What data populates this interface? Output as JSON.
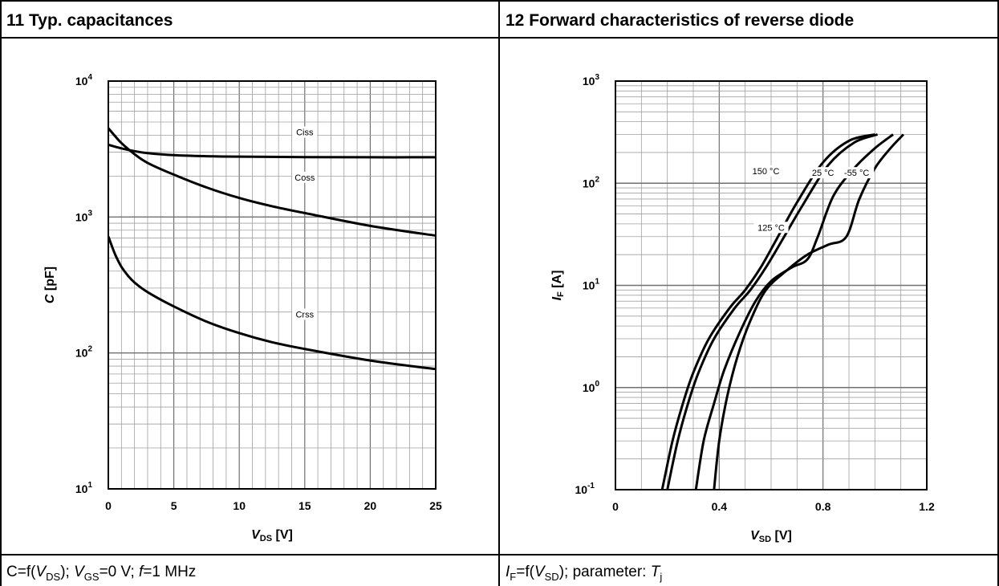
{
  "panels": [
    {
      "header": "11 Typ. capacitances",
      "caption": {
        "a": "C=f(",
        "b": "V",
        "c": "DS",
        "d": "); ",
        "e": "V",
        "f": "GS",
        "g": "=0 V; ",
        "h": "f",
        "i": "=1 MHz"
      }
    },
    {
      "header": "12 Forward characteristics of reverse diode",
      "caption": {
        "a": "I",
        "b": "F",
        "c": "=f(",
        "d": "V",
        "e": "SD",
        "f": "); parameter: ",
        "g": "T",
        "h": "j"
      }
    }
  ],
  "chart_data": [
    {
      "type": "line",
      "y_scale": "log",
      "xlim": [
        0,
        25
      ],
      "ylim": [
        10,
        10000
      ],
      "grid": true,
      "x_ticks": [
        "0",
        "5",
        "10",
        "15",
        "20",
        "25"
      ],
      "y_ticks": [
        {
          "base": "10",
          "exp": "1"
        },
        {
          "base": "10",
          "exp": "2"
        },
        {
          "base": "10",
          "exp": "3"
        },
        {
          "base": "10",
          "exp": "4"
        }
      ],
      "xlabel": {
        "main": "V",
        "sub": "DS",
        "unit": " [V]"
      },
      "ylabel": "C [pF]",
      "series": [
        {
          "name": "Ciss",
          "label_at": [
            15,
            4050
          ],
          "x": [
            0,
            1,
            2,
            3,
            5,
            7.5,
            10,
            15,
            20,
            25
          ],
          "y": [
            3400,
            3200,
            3050,
            2950,
            2850,
            2800,
            2780,
            2760,
            2750,
            2750
          ]
        },
        {
          "name": "Coss",
          "label_at": [
            15,
            1880
          ],
          "x": [
            0,
            0.5,
            1,
            2,
            3,
            5,
            7.5,
            10,
            12.5,
            15,
            20,
            25
          ],
          "y": [
            4500,
            3950,
            3500,
            2900,
            2500,
            2050,
            1650,
            1380,
            1200,
            1070,
            860,
            730
          ]
        },
        {
          "name": "Crss",
          "label_at": [
            15,
            185
          ],
          "x": [
            0,
            0.3,
            0.6,
            1,
            1.5,
            2,
            3,
            5,
            7.5,
            10,
            12.5,
            15,
            20,
            25
          ],
          "y": [
            720,
            600,
            510,
            430,
            370,
            330,
            280,
            220,
            170,
            140,
            120,
            107,
            88,
            76
          ]
        }
      ]
    },
    {
      "type": "line",
      "y_scale": "log",
      "xlim": [
        0,
        1.2
      ],
      "ylim": [
        0.1,
        1000
      ],
      "grid": true,
      "x_ticks": [
        "0",
        "0.4",
        "0.8",
        "1.2"
      ],
      "y_ticks": [
        {
          "base": "10",
          "exp": "-1"
        },
        {
          "base": "10",
          "exp": "0"
        },
        {
          "base": "10",
          "exp": "1"
        },
        {
          "base": "10",
          "exp": "2"
        },
        {
          "base": "10",
          "exp": "3"
        }
      ],
      "xlabel": {
        "main": "V",
        "sub": "SD",
        "unit": " [V]"
      },
      "ylabel": {
        "main": "I",
        "sub": "F",
        "unit": " [A]"
      },
      "series": [
        {
          "name": "150 °C",
          "label_at": [
            0.58,
            125
          ],
          "x": [
            0.18,
            0.22,
            0.26,
            0.3,
            0.36,
            0.44,
            0.5,
            0.56,
            0.62,
            0.7,
            0.8,
            0.9,
            1.0
          ],
          "y": [
            0.1,
            0.3,
            0.7,
            1.4,
            3,
            6,
            9,
            15,
            28,
            65,
            160,
            260,
            300
          ]
        },
        {
          "name": "125 °C",
          "label_at": [
            0.6,
            35
          ],
          "x": [
            0.2,
            0.24,
            0.28,
            0.32,
            0.38,
            0.46,
            0.52,
            0.58,
            0.64,
            0.72,
            0.82,
            0.92,
            1.01
          ],
          "y": [
            0.1,
            0.3,
            0.7,
            1.4,
            3,
            6,
            9,
            15,
            27,
            60,
            150,
            250,
            300
          ]
        },
        {
          "name": "25 °C",
          "label_at": [
            0.8,
            120
          ],
          "x": [
            0.31,
            0.34,
            0.38,
            0.42,
            0.48,
            0.54,
            0.6,
            0.68,
            0.74,
            0.78,
            0.84,
            0.92,
            1.0,
            1.07
          ],
          "y": [
            0.1,
            0.3,
            0.7,
            1.5,
            3.5,
            7,
            11,
            15,
            18,
            30,
            75,
            140,
            220,
            300
          ]
        },
        {
          "name": "-55 °C",
          "label_at": [
            0.93,
            120
          ],
          "x": [
            0.38,
            0.4,
            0.43,
            0.47,
            0.52,
            0.58,
            0.66,
            0.74,
            0.82,
            0.89,
            0.94,
            1.0,
            1.06,
            1.11
          ],
          "y": [
            0.1,
            0.3,
            0.8,
            2,
            4.5,
            9,
            14,
            20,
            25,
            30,
            70,
            140,
            220,
            300
          ]
        }
      ]
    }
  ]
}
